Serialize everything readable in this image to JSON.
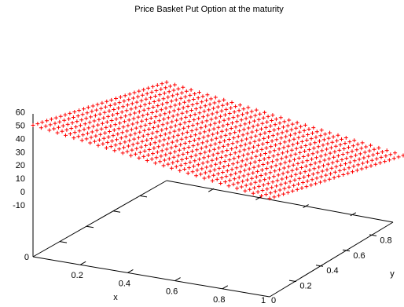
{
  "chart_data": {
    "type": "scatter",
    "plot_style": "3d-surface-points",
    "marker": "+",
    "title": "Price Basket Put Option at the maturity",
    "xlabel": "x",
    "ylabel": "y",
    "zlabel": "",
    "xlim": [
      0,
      1
    ],
    "ylim": [
      0,
      1
    ],
    "zlim": [
      -10,
      60
    ],
    "x_ticks": [
      "0.2",
      "0.4",
      "0.6",
      "0.8"
    ],
    "x_tick_values": [
      0.2,
      0.4,
      0.6,
      0.8
    ],
    "y_ticks": [
      "0.2",
      "0.4",
      "0.6",
      "0.8"
    ],
    "y_tick_values": [
      0.2,
      0.4,
      0.6,
      0.8
    ],
    "z_ticks": [
      "60",
      "50",
      "40",
      "30",
      "20",
      "10",
      "0",
      "-10"
    ],
    "z_tick_values": [
      60,
      50,
      40,
      30,
      20,
      10,
      0,
      -10
    ],
    "corner_labels": {
      "origin": "0",
      "x_end": "1",
      "y_start": "0"
    },
    "grid": false,
    "series_color": "#ff0000",
    "surface": {
      "x_points": 30,
      "y_points": 30,
      "function": "max(50 - 50*(x+y)/2, 0)",
      "approx_values": [
        {
          "x": 0,
          "y": 0,
          "z": 50
        },
        {
          "x": 0,
          "y": 1,
          "z": 25
        },
        {
          "x": 1,
          "y": 0,
          "z": 25
        },
        {
          "x": 1,
          "y": 1,
          "z": 0
        }
      ]
    }
  }
}
